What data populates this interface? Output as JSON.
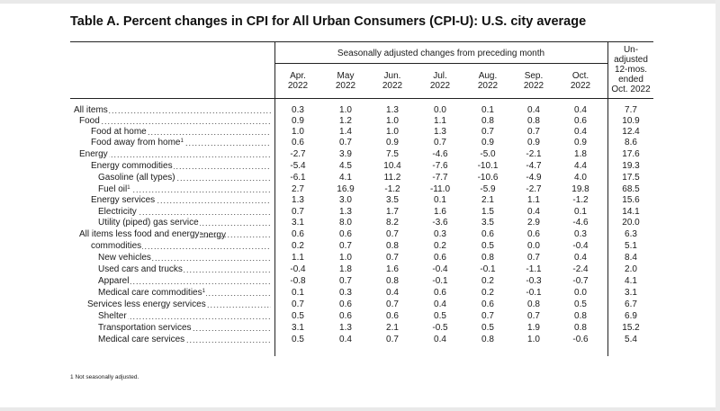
{
  "title": "Table A. Percent changes in CPI for All Urban Consumers (CPI-U): U.S. city average",
  "header": {
    "seasonally_adjusted": "Seasonally adjusted changes from preceding month",
    "unadjusted_lines": [
      "Un-",
      "adjusted",
      "12-mos.",
      "ended",
      "Oct. 2022"
    ],
    "months": [
      [
        "Apr.",
        "2022"
      ],
      [
        "May",
        "2022"
      ],
      [
        "Jun.",
        "2022"
      ],
      [
        "Jul.",
        "2022"
      ],
      [
        "Aug.",
        "2022"
      ],
      [
        "Sep.",
        "2022"
      ],
      [
        "Oct.",
        "2022"
      ]
    ]
  },
  "rows": [
    {
      "label": "All items",
      "values": [
        "0.3",
        "1.0",
        "1.3",
        "0.0",
        "0.1",
        "0.4",
        "0.4",
        "7.7"
      ]
    },
    {
      "label": "Food",
      "values": [
        "0.9",
        "1.2",
        "1.0",
        "1.1",
        "0.8",
        "0.8",
        "0.6",
        "10.9"
      ]
    },
    {
      "label": "Food at home",
      "values": [
        "1.0",
        "1.4",
        "1.0",
        "1.3",
        "0.7",
        "0.7",
        "0.4",
        "12.4"
      ]
    },
    {
      "label": "Food away from home",
      "sup": "1",
      "values": [
        "0.6",
        "0.7",
        "0.9",
        "0.7",
        "0.9",
        "0.9",
        "0.9",
        "8.6"
      ]
    },
    {
      "label": "Energy",
      "values": [
        "-2.7",
        "3.9",
        "7.5",
        "-4.6",
        "-5.0",
        "-2.1",
        "1.8",
        "17.6"
      ]
    },
    {
      "label": "Energy commodities",
      "values": [
        "-5.4",
        "4.5",
        "10.4",
        "-7.6",
        "-10.1",
        "-4.7",
        "4.4",
        "19.3"
      ]
    },
    {
      "label": "Gasoline (all types)",
      "values": [
        "-6.1",
        "4.1",
        "11.2",
        "-7.7",
        "-10.6",
        "-4.9",
        "4.0",
        "17.5"
      ]
    },
    {
      "label": "Fuel oil",
      "sup": "1",
      "values": [
        "2.7",
        "16.9",
        "-1.2",
        "-11.0",
        "-5.9",
        "-2.7",
        "19.8",
        "68.5"
      ]
    },
    {
      "label": "Energy services",
      "values": [
        "1.3",
        "3.0",
        "3.5",
        "0.1",
        "2.1",
        "1.1",
        "-1.2",
        "15.6"
      ]
    },
    {
      "label": "Electricity",
      "values": [
        "0.7",
        "1.3",
        "1.7",
        "1.6",
        "1.5",
        "0.4",
        "0.1",
        "14.1"
      ]
    },
    {
      "label": "Utility (piped) gas service",
      "values": [
        "3.1",
        "8.0",
        "8.2",
        "-3.6",
        "3.5",
        "2.9",
        "-4.6",
        "20.0"
      ]
    },
    {
      "label": "All items less food and energy",
      "values": [
        "0.6",
        "0.6",
        "0.7",
        "0.3",
        "0.6",
        "0.6",
        "0.3",
        "6.3"
      ]
    },
    {
      "label": "Commodities less food and energy",
      "label2": "commodities",
      "values": [
        "0.2",
        "0.7",
        "0.8",
        "0.2",
        "0.5",
        "0.0",
        "-0.4",
        "5.1"
      ]
    },
    {
      "label": "New vehicles",
      "values": [
        "1.1",
        "1.0",
        "0.7",
        "0.6",
        "0.8",
        "0.7",
        "0.4",
        "8.4"
      ]
    },
    {
      "label": "Used cars and trucks",
      "values": [
        "-0.4",
        "1.8",
        "1.6",
        "-0.4",
        "-0.1",
        "-1.1",
        "-2.4",
        "2.0"
      ]
    },
    {
      "label": "Apparel",
      "values": [
        "-0.8",
        "0.7",
        "0.8",
        "-0.1",
        "0.2",
        "-0.3",
        "-0.7",
        "4.1"
      ]
    },
    {
      "label": "Medical care commodities",
      "sup": "1",
      "values": [
        "0.1",
        "0.3",
        "0.4",
        "0.6",
        "0.2",
        "-0.1",
        "0.0",
        "3.1"
      ]
    },
    {
      "label": "Services less energy services",
      "values": [
        "0.7",
        "0.6",
        "0.7",
        "0.4",
        "0.6",
        "0.8",
        "0.5",
        "6.7"
      ]
    },
    {
      "label": "Shelter",
      "values": [
        "0.5",
        "0.6",
        "0.6",
        "0.5",
        "0.7",
        "0.7",
        "0.8",
        "6.9"
      ]
    },
    {
      "label": "Transportation services",
      "values": [
        "3.1",
        "1.3",
        "2.1",
        "-0.5",
        "0.5",
        "1.9",
        "0.8",
        "15.2"
      ]
    },
    {
      "label": "Medical care services",
      "values": [
        "0.5",
        "0.4",
        "0.7",
        "0.4",
        "0.8",
        "1.0",
        "-0.6",
        "5.4"
      ]
    }
  ],
  "footnote_mark": "1",
  "footnote_text": "Not seasonally adjusted."
}
